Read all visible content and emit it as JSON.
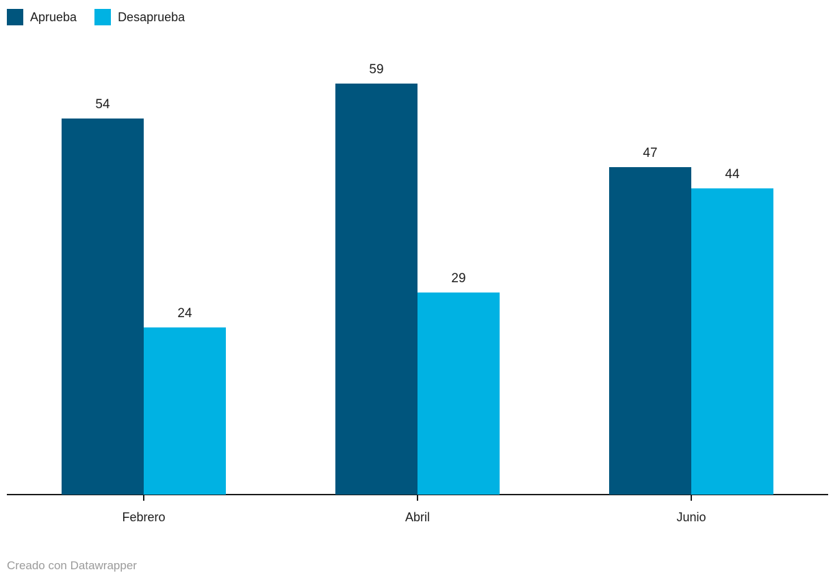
{
  "chart_data": {
    "type": "bar",
    "categories": [
      "Febrero",
      "Abril",
      "Junio"
    ],
    "series": [
      {
        "name": "Aprueba",
        "color": "#00557D",
        "values": [
          54,
          59,
          47
        ]
      },
      {
        "name": "Desaprueba",
        "color": "#00B2E3",
        "values": [
          24,
          29,
          44
        ]
      }
    ],
    "title": "",
    "xlabel": "",
    "ylabel": "",
    "ylim": [
      0,
      59
    ],
    "grid": false,
    "legend_position": "top-left",
    "value_labels": true,
    "axis_color": "#1a1a1a",
    "label_color": "#1d1d1d"
  },
  "footer": {
    "credit_text": "Creado con Datawrapper",
    "credit_color": "#9b9b9b"
  }
}
